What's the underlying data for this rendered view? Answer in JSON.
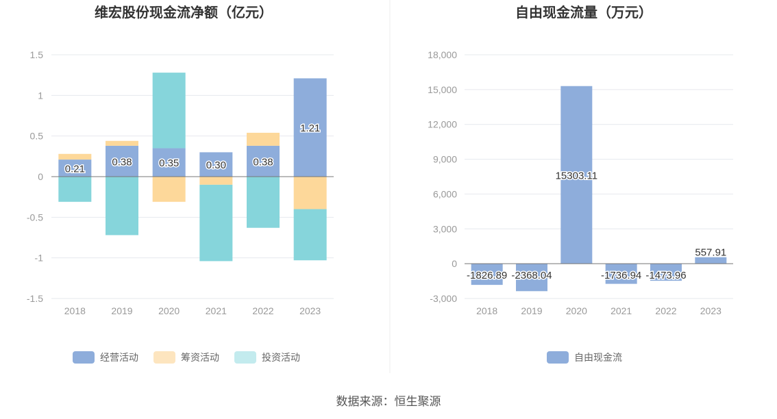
{
  "source": "数据来源：恒生聚源",
  "chart_data": [
    {
      "type": "bar",
      "stacked": true,
      "title": "维宏股份现金流净额（亿元）",
      "categories": [
        "2018",
        "2019",
        "2020",
        "2021",
        "2022",
        "2023"
      ],
      "ylim": [
        -1.5,
        1.5
      ],
      "yticks": [
        "1.5",
        "1",
        "0.5",
        "0",
        "-0.5",
        "-1",
        "-1.5"
      ],
      "grid": true,
      "legend_position": "bottom",
      "series": [
        {
          "name": "经营活动",
          "color": "#8eaddb",
          "values": [
            0.21,
            0.38,
            0.35,
            0.3,
            0.38,
            1.21
          ],
          "labels": [
            "0.21",
            "0.38",
            "0.35",
            "0.30",
            "0.38",
            "1.21"
          ]
        },
        {
          "name": "筹资活动",
          "color": "#fdd89a",
          "values": [
            0.07,
            0.06,
            -0.31,
            -0.1,
            0.16,
            -0.4
          ]
        },
        {
          "name": "投资活动",
          "color": "#86d5db",
          "values": [
            -0.31,
            -0.72,
            0.93,
            -0.94,
            -0.63,
            -0.63
          ]
        }
      ],
      "legend_colors": [
        "#8eaddb",
        "#fde5bf",
        "#c3ebee"
      ]
    },
    {
      "type": "bar",
      "title": "自由现金流量（万元）",
      "categories": [
        "2018",
        "2019",
        "2020",
        "2021",
        "2022",
        "2023"
      ],
      "ylim": [
        -3000,
        18000
      ],
      "yticks": [
        "18,000",
        "15,000",
        "12,000",
        "9,000",
        "6,000",
        "3,000",
        "0",
        "-3,000"
      ],
      "grid": true,
      "legend_position": "bottom",
      "series": [
        {
          "name": "自由现金流",
          "color": "#8eaddb",
          "values": [
            -1826.89,
            -2368.04,
            15303.11,
            -1736.94,
            -1473.96,
            557.91
          ],
          "labels": [
            "-1826.89",
            "-2368.04",
            "15303.11",
            "-1736.94",
            "-1473.96",
            "557.91"
          ]
        }
      ]
    }
  ]
}
